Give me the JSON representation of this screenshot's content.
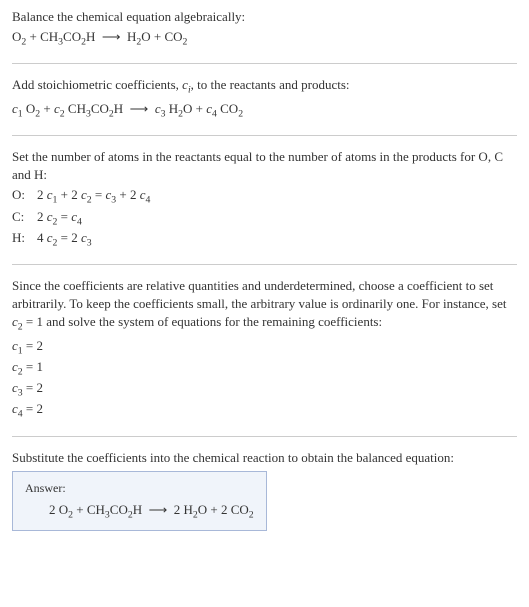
{
  "section1": {
    "intro": "Balance the chemical equation algebraically:",
    "equation_html": "O<sub>2</sub> + CH<sub>3</sub>CO<sub>2</sub>H&nbsp;&nbsp;⟶&nbsp;&nbsp;H<sub>2</sub>O + CO<sub>2</sub>"
  },
  "section2": {
    "intro_html": "Add stoichiometric coefficients, <span class=\"italic\">c<sub>i</sub></span>, to the reactants and products:",
    "equation_html": "<span class=\"italic\">c</span><sub>1</sub> O<sub>2</sub> + <span class=\"italic\">c</span><sub>2</sub> CH<sub>3</sub>CO<sub>2</sub>H&nbsp;&nbsp;⟶&nbsp;&nbsp;<span class=\"italic\">c</span><sub>3</sub> H<sub>2</sub>O + <span class=\"italic\">c</span><sub>4</sub> CO<sub>2</sub>"
  },
  "section3": {
    "intro": "Set the number of atoms in the reactants equal to the number of atoms in the products for O, C and H:",
    "rows": [
      {
        "label": "O:",
        "eq_html": "2 <span class=\"italic\">c</span><sub>1</sub> + 2 <span class=\"italic\">c</span><sub>2</sub> = <span class=\"italic\">c</span><sub>3</sub> + 2 <span class=\"italic\">c</span><sub>4</sub>"
      },
      {
        "label": "C:",
        "eq_html": "2 <span class=\"italic\">c</span><sub>2</sub> = <span class=\"italic\">c</span><sub>4</sub>"
      },
      {
        "label": "H:",
        "eq_html": "4 <span class=\"italic\">c</span><sub>2</sub> = 2 <span class=\"italic\">c</span><sub>3</sub>"
      }
    ]
  },
  "section4": {
    "intro_html": "Since the coefficients are relative quantities and underdetermined, choose a coefficient to set arbitrarily. To keep the coefficients small, the arbitrary value is ordinarily one. For instance, set <span class=\"italic\">c</span><sub>2</sub> = 1 and solve the system of equations for the remaining coefficients:",
    "coeffs": [
      {
        "html": "<span class=\"italic\">c</span><sub>1</sub> = 2"
      },
      {
        "html": "<span class=\"italic\">c</span><sub>2</sub> = 1"
      },
      {
        "html": "<span class=\"italic\">c</span><sub>3</sub> = 2"
      },
      {
        "html": "<span class=\"italic\">c</span><sub>4</sub> = 2"
      }
    ]
  },
  "section5": {
    "intro": "Substitute the coefficients into the chemical reaction to obtain the balanced equation:",
    "answer_label": "Answer:",
    "answer_html": "2 O<sub>2</sub> + CH<sub>3</sub>CO<sub>2</sub>H&nbsp;&nbsp;⟶&nbsp;&nbsp;2 H<sub>2</sub>O + 2 CO<sub>2</sub>"
  }
}
